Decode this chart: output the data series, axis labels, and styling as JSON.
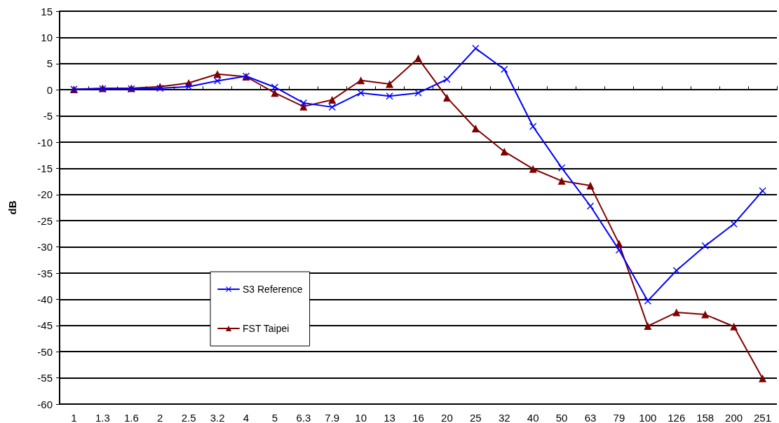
{
  "chart_data": {
    "type": "line",
    "ylabel": "dB",
    "categories": [
      "1",
      "1.3",
      "1.6",
      "2",
      "2.5",
      "3.2",
      "4",
      "5",
      "6.3",
      "7.9",
      "10",
      "13",
      "16",
      "20",
      "25",
      "32",
      "40",
      "50",
      "63",
      "79",
      "100",
      "126",
      "158",
      "200",
      "251"
    ],
    "series": [
      {
        "name": "S3 Reference",
        "color": "#0000ff",
        "marker": "cross",
        "values": [
          0.1,
          0.2,
          0.2,
          0.3,
          0.6,
          1.7,
          2.6,
          0.5,
          -2.5,
          -3.3,
          -0.6,
          -1.2,
          -0.6,
          2.0,
          7.9,
          3.9,
          -7.0,
          -14.9,
          -22.2,
          -30.6,
          -40.3,
          -34.5,
          -29.8,
          -25.6,
          -19.3
        ]
      },
      {
        "name": "FST Taipei",
        "color": "#800000",
        "marker": "triangle",
        "values": [
          0.1,
          0.3,
          0.3,
          0.6,
          1.3,
          3.0,
          2.5,
          -0.6,
          -3.2,
          -1.9,
          1.8,
          1.1,
          6.0,
          -1.5,
          -7.4,
          -11.8,
          -15.1,
          -17.4,
          -18.3,
          -29.4,
          -45.1,
          -42.5,
          -42.9,
          -45.2,
          -55.1
        ]
      }
    ],
    "ylim": [
      -60,
      15
    ],
    "yticks": [
      -60,
      -55,
      -50,
      -45,
      -40,
      -35,
      -30,
      -25,
      -20,
      -15,
      -10,
      -5,
      0,
      5,
      10,
      15
    ],
    "grid": "y",
    "legend": "bottom left",
    "line_style": "solid"
  }
}
